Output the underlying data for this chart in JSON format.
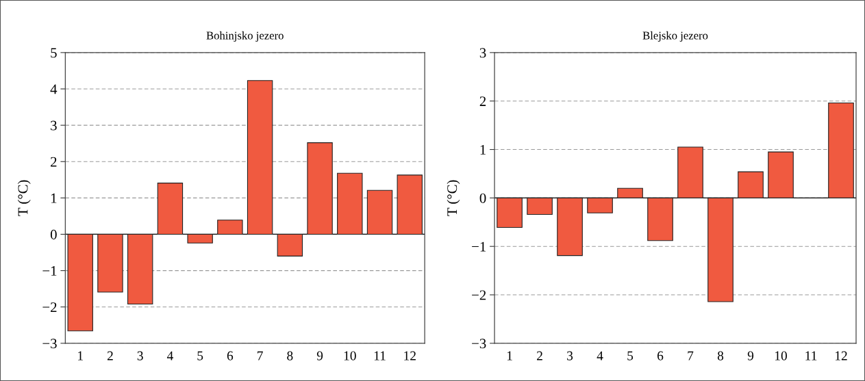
{
  "chart_data": [
    {
      "type": "bar",
      "title": "Bohinjsko jezero",
      "ylabel": "T (°C)",
      "categories": [
        "1",
        "2",
        "3",
        "4",
        "5",
        "6",
        "7",
        "8",
        "9",
        "10",
        "11",
        "12"
      ],
      "values": [
        -2.66,
        -1.59,
        -1.92,
        1.41,
        -0.24,
        0.39,
        4.23,
        -0.6,
        2.52,
        1.68,
        1.21,
        1.63
      ],
      "color": "#f05a40",
      "ylim": [
        -3,
        5
      ],
      "yticks": [
        {
          "value": -3,
          "label": "−3"
        },
        {
          "value": -2,
          "label": "−2"
        },
        {
          "value": -1,
          "label": "−1"
        },
        0,
        1,
        2,
        3,
        4,
        5
      ],
      "grid": "y",
      "ref_lines": [
        {
          "axis": "y",
          "value": 0,
          "color": "#000000",
          "line_style": "solid"
        }
      ]
    },
    {
      "type": "bar",
      "title": "Blejsko jezero",
      "ylabel": "T (°C)",
      "categories": [
        "1",
        "2",
        "3",
        "4",
        "5",
        "6",
        "7",
        "8",
        "9",
        "10",
        "11",
        "12"
      ],
      "values": [
        -0.61,
        -0.34,
        -1.19,
        -0.31,
        0.2,
        -0.88,
        1.05,
        -2.14,
        0.54,
        0.95,
        null,
        1.96
      ],
      "color": "#f05a40",
      "ylim": [
        -3,
        3
      ],
      "yticks": [
        {
          "value": -3,
          "label": "−3"
        },
        {
          "value": -2,
          "label": "−2"
        },
        {
          "value": -1,
          "label": "−1"
        },
        0,
        1,
        2,
        3
      ],
      "grid": "y",
      "ref_lines": [
        {
          "axis": "y",
          "value": 0,
          "color": "#000000",
          "line_style": "solid"
        }
      ]
    }
  ]
}
